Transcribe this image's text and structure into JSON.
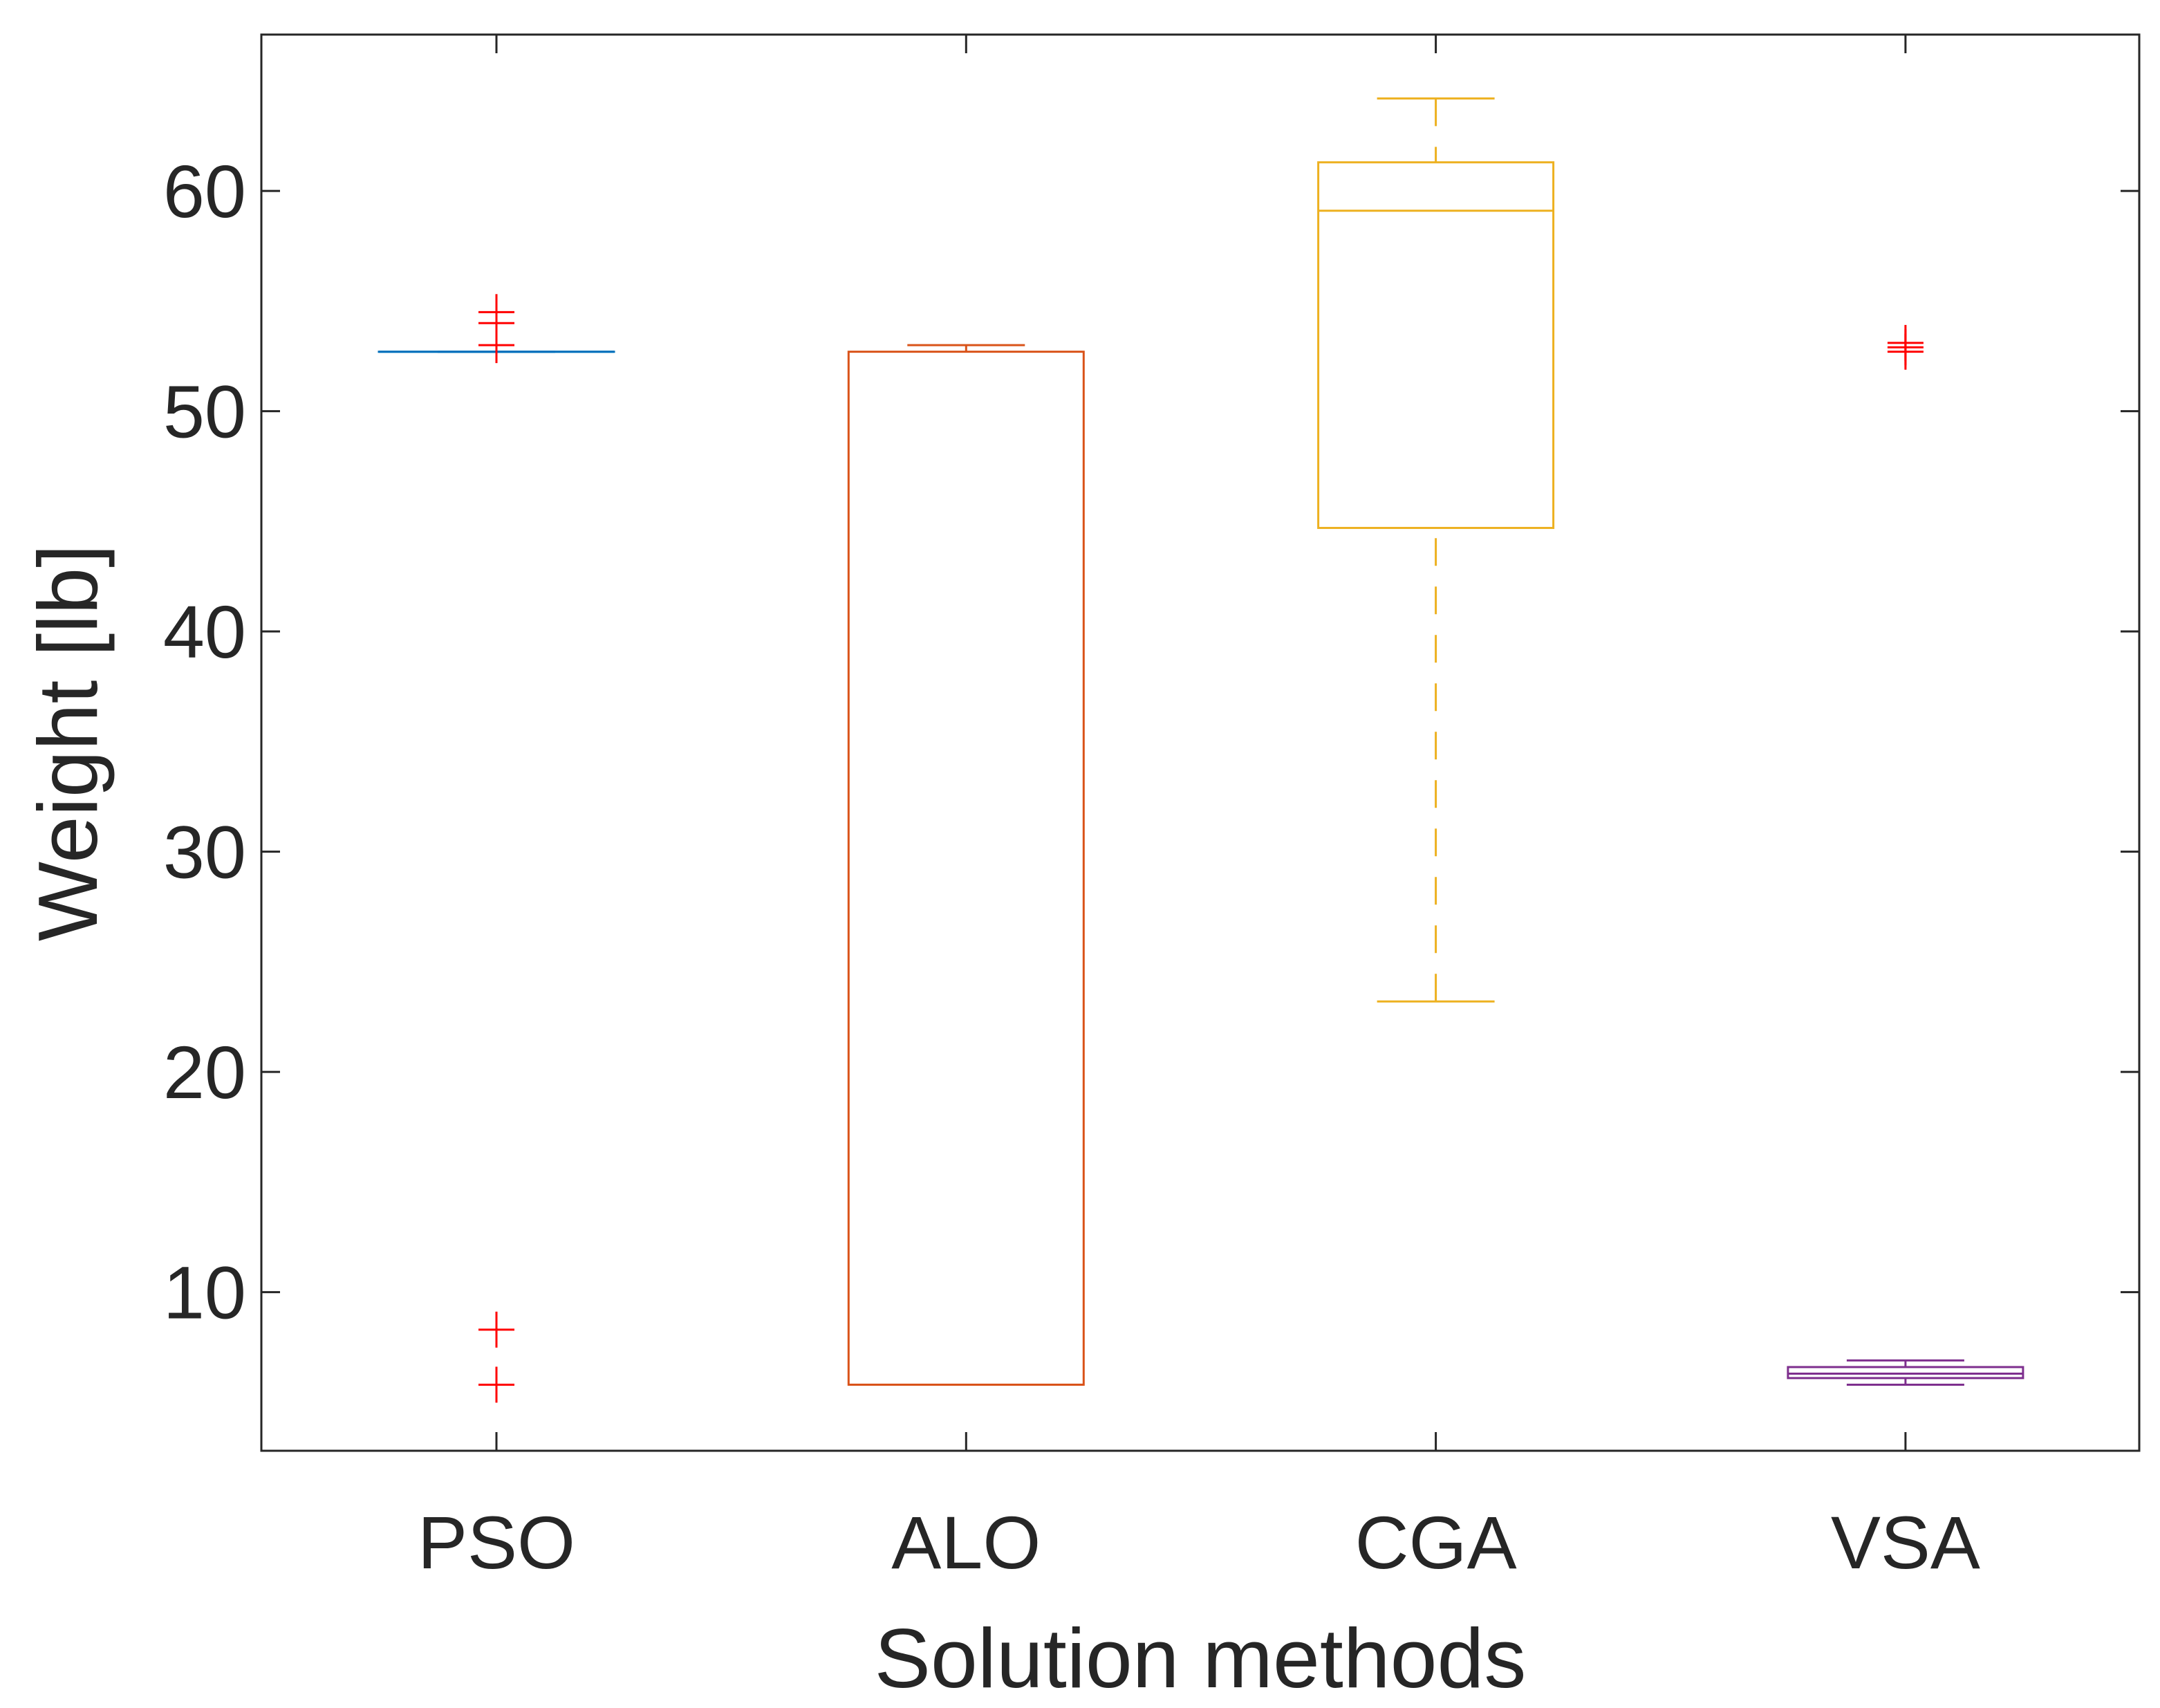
{
  "chart_data": {
    "type": "box",
    "title": "",
    "xlabel": "Solution methods",
    "ylabel": "Weight [lb]",
    "ylim": [
      2.8,
      67.1
    ],
    "yticks": [
      10,
      20,
      30,
      40,
      50,
      60
    ],
    "grid": false,
    "categories": [
      "PSO",
      "ALO",
      "CGA",
      "VSA"
    ],
    "boxes": [
      {
        "name": "PSO",
        "color": "#0072BD",
        "whisker_low": 52.7,
        "q1": 52.7,
        "median": 52.7,
        "q3": 52.7,
        "whisker_high": 52.7,
        "outliers": [
          54.5,
          54.0,
          53.0,
          8.3,
          5.8
        ]
      },
      {
        "name": "ALO",
        "color": "#D95319",
        "whisker_low": 5.8,
        "q1": 5.8,
        "median": 5.8,
        "q3": 52.7,
        "whisker_high": 53.0,
        "outliers": []
      },
      {
        "name": "CGA",
        "color": "#EDB120",
        "whisker_low": 23.2,
        "q1": 44.7,
        "median": 59.1,
        "q3": 61.3,
        "whisker_high": 64.2,
        "outliers": []
      },
      {
        "name": "VSA",
        "color": "#7E2F8E",
        "whisker_low": 5.8,
        "q1": 6.1,
        "median": 6.3,
        "q3": 6.6,
        "whisker_high": 6.9,
        "outliers": [
          53.1,
          52.9,
          52.7
        ]
      }
    ],
    "outlier_color": "#FF0000",
    "axis_color": "#262626"
  }
}
